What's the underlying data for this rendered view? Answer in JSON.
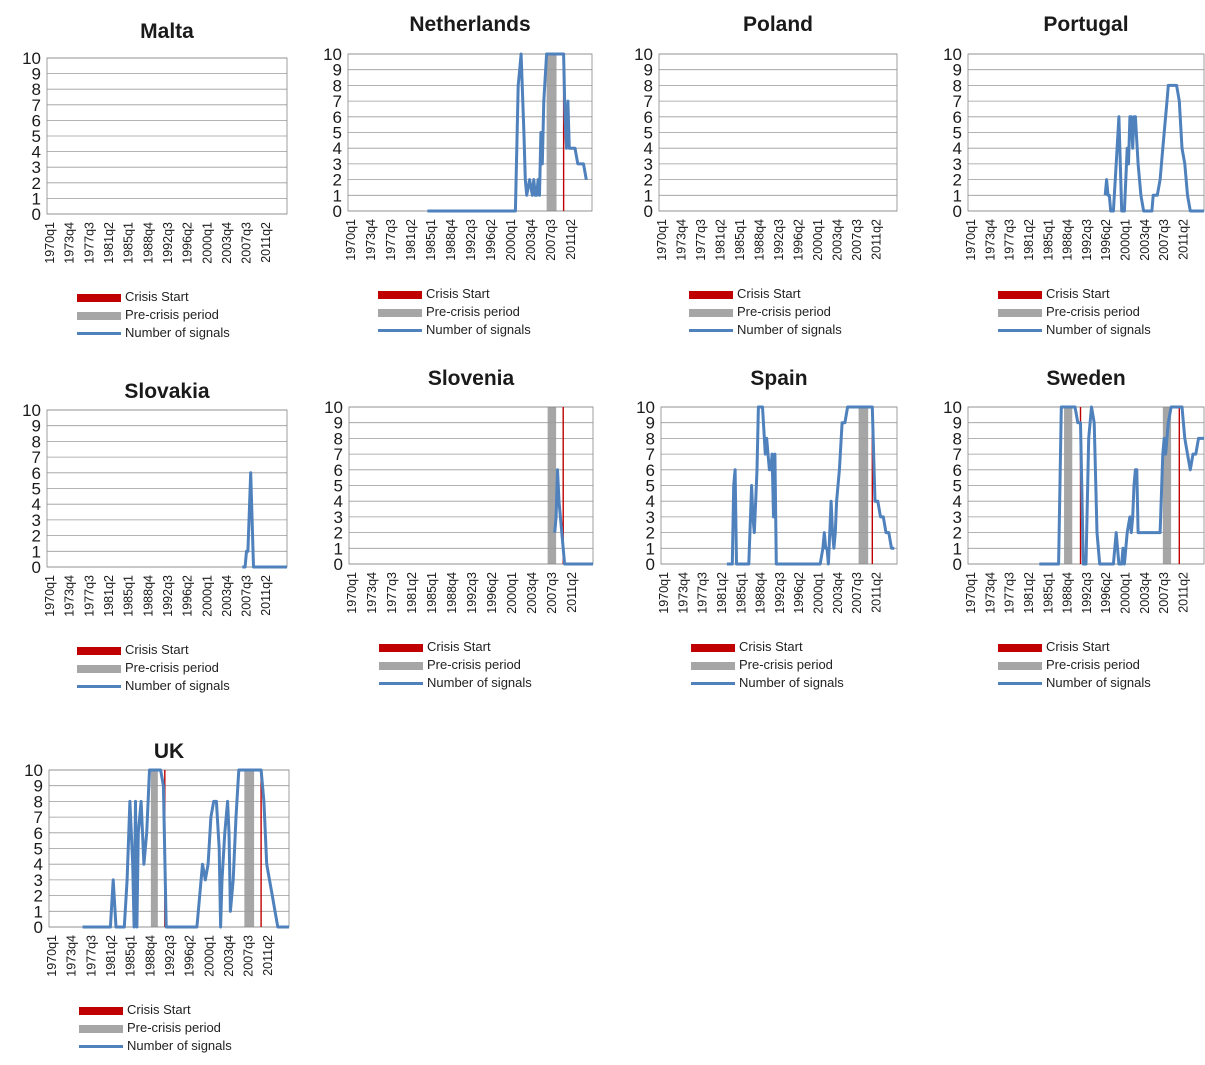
{
  "colors": {
    "crisis": "#c00000",
    "precrisis": "#a6a6a6",
    "signals": "#4f81bd",
    "grid": "#9a9a9a"
  },
  "chart_data": [
    {
      "type": "line",
      "title": "Malta",
      "ylim": [
        0,
        10
      ],
      "yticks": [
        0,
        1,
        2,
        3,
        4,
        5,
        6,
        7,
        8,
        9,
        10
      ],
      "xlim": [
        1970.0,
        2013.0
      ],
      "xtick_labels": [
        "1970q1",
        "1973q4",
        "1977q3",
        "1981q2",
        "1985q1",
        "1988q4",
        "1992q3",
        "1996q2",
        "2000q1",
        "2003q4",
        "2007q3",
        "2011q2"
      ],
      "legend": [
        "Crisis Start",
        "Pre-crisis period",
        "Number of signals"
      ],
      "grid": true,
      "crisis_start": [],
      "precrisis": [],
      "series": [
        {
          "x": [],
          "y": []
        }
      ]
    },
    {
      "type": "line",
      "title": "Netherlands",
      "ylim": [
        0,
        10
      ],
      "yticks": [
        0,
        1,
        2,
        3,
        4,
        5,
        6,
        7,
        8,
        9,
        10
      ],
      "xlim": [
        1970.0,
        2013.0
      ],
      "xtick_labels": [
        "1970q1",
        "1973q4",
        "1977q3",
        "1981q2",
        "1985q1",
        "1988q4",
        "1992q3",
        "1996q2",
        "2000q1",
        "2003q4",
        "2007q3",
        "2011q2"
      ],
      "legend": [
        "Crisis Start",
        "Pre-crisis period",
        "Number of signals"
      ],
      "grid": true,
      "crisis_start": [
        2008.0
      ],
      "precrisis": [
        [
          2005.0,
          2006.75
        ]
      ],
      "series": [
        {
          "x": [
            1984.0,
            1999.0,
            1999.5,
            2000.0,
            2000.25,
            2000.5,
            2001.0,
            2001.25,
            2001.5,
            2002.0,
            2002.5,
            2002.75,
            2003.0,
            2003.25,
            2003.5,
            2003.75,
            2004.0,
            2004.25,
            2004.5,
            2005.0,
            2005.5,
            2006.0,
            2006.5,
            2007.0,
            2007.25,
            2007.5,
            2008.0,
            2008.25,
            2008.5,
            2008.75,
            2009.0,
            2009.5,
            2009.75,
            2010.0,
            2010.5,
            2011.0,
            2011.5,
            2012.0
          ],
          "y": [
            0,
            0,
            0,
            8,
            9,
            10,
            5,
            2,
            1,
            2,
            1,
            2,
            1,
            1,
            2,
            1,
            5,
            3,
            7,
            10,
            10,
            10,
            10,
            10,
            10,
            10,
            10,
            6,
            4,
            7,
            4,
            4,
            4,
            4,
            3,
            3,
            3,
            2
          ]
        }
      ]
    },
    {
      "type": "line",
      "title": "Poland",
      "ylim": [
        0,
        10
      ],
      "yticks": [
        0,
        1,
        2,
        3,
        4,
        5,
        6,
        7,
        8,
        9,
        10
      ],
      "xlim": [
        1970.0,
        2013.0
      ],
      "xtick_labels": [
        "1970q1",
        "1973q4",
        "1977q3",
        "1981q2",
        "1985q1",
        "1988q4",
        "1992q3",
        "1996q2",
        "2000q1",
        "2003q4",
        "2007q3",
        "2011q2"
      ],
      "legend": [
        "Crisis Start",
        "Pre-crisis period",
        "Number of signals"
      ],
      "grid": true,
      "crisis_start": [],
      "precrisis": [],
      "series": [
        {
          "x": [],
          "y": []
        }
      ]
    },
    {
      "type": "line",
      "title": "Portugal",
      "ylim": [
        0,
        10
      ],
      "yticks": [
        0,
        1,
        2,
        3,
        4,
        5,
        6,
        7,
        8,
        9,
        10
      ],
      "xlim": [
        1970.0,
        2013.0
      ],
      "xtick_labels": [
        "1970q1",
        "1973q4",
        "1977q3",
        "1981q2",
        "1985q1",
        "1988q4",
        "1992q3",
        "1996q2",
        "2000q1",
        "2003q4",
        "2007q3",
        "2011q2"
      ],
      "legend": [
        "Crisis Start",
        "Pre-crisis period",
        "Number of signals"
      ],
      "grid": true,
      "crisis_start": [],
      "precrisis": [],
      "series": [
        {
          "x": [
            1995.0,
            1995.25,
            1995.5,
            1995.75,
            1996.0,
            1996.25,
            1996.5,
            1997.0,
            1997.5,
            1998.0,
            1998.5,
            1999.0,
            1999.25,
            1999.5,
            1999.75,
            2000.0,
            2000.25,
            2000.5,
            2001.0,
            2001.5,
            2002.0,
            2003.0,
            2003.5,
            2003.75,
            2004.0,
            2004.5,
            2005.0,
            2005.5,
            2006.0,
            2006.25,
            2006.5,
            2007.0,
            2007.5,
            2008.0,
            2008.5,
            2009.0,
            2009.5,
            2010.0,
            2010.5,
            2011.0,
            2012.0,
            2013.0
          ],
          "y": [
            1,
            2,
            1,
            1,
            0,
            0,
            0,
            3,
            6,
            0,
            0,
            4,
            3,
            6,
            6,
            4,
            6,
            6,
            3,
            1,
            0,
            0,
            0,
            1,
            1,
            1,
            2,
            4,
            6,
            7,
            8,
            8,
            8,
            8,
            7,
            4,
            3,
            1,
            0,
            0,
            0,
            0
          ]
        }
      ]
    },
    {
      "type": "line",
      "title": "Slovakia",
      "ylim": [
        0,
        10
      ],
      "yticks": [
        0,
        1,
        2,
        3,
        4,
        5,
        6,
        7,
        8,
        9,
        10
      ],
      "xlim": [
        1970.0,
        2013.0
      ],
      "xtick_labels": [
        "1970q1",
        "1973q4",
        "1977q3",
        "1981q2",
        "1985q1",
        "1988q4",
        "1992q3",
        "1996q2",
        "2000q1",
        "2003q4",
        "2007q3",
        "2011q2"
      ],
      "legend": [
        "Crisis Start",
        "Pre-crisis period",
        "Number of signals"
      ],
      "grid": true,
      "crisis_start": [],
      "precrisis": [],
      "series": [
        {
          "x": [
            2005.0,
            2005.5,
            2005.75,
            2006.0,
            2006.5,
            2007.0,
            2007.5,
            2008.0,
            2009.0,
            2010.0,
            2011.0,
            2012.0,
            2013.0
          ],
          "y": [
            0,
            0,
            1,
            1,
            6,
            0,
            0,
            0,
            0,
            0,
            0,
            0,
            0
          ]
        }
      ]
    },
    {
      "type": "line",
      "title": "Slovenia",
      "ylim": [
        0,
        10
      ],
      "yticks": [
        0,
        1,
        2,
        3,
        4,
        5,
        6,
        7,
        8,
        9,
        10
      ],
      "xlim": [
        1970.0,
        2013.0
      ],
      "xtick_labels": [
        "1970q1",
        "1973q4",
        "1977q3",
        "1981q2",
        "1985q1",
        "1988q4",
        "1992q3",
        "1996q2",
        "2000q1",
        "2003q4",
        "2007q3",
        "2011q2"
      ],
      "legend": [
        "Crisis Start",
        "Pre-crisis period",
        "Number of signals"
      ],
      "grid": true,
      "crisis_start": [
        2007.75
      ],
      "precrisis": [
        [
          2005.0,
          2006.5
        ]
      ],
      "series": [
        {
          "x": [
            2006.25,
            2006.5,
            2006.75,
            2007.0,
            2007.25,
            2007.5,
            2008.0,
            2008.5,
            2009.0,
            2010.0,
            2011.0,
            2012.0,
            2013.0
          ],
          "y": [
            2,
            3,
            6,
            4,
            3,
            2,
            0,
            0,
            0,
            0,
            0,
            0,
            0
          ]
        }
      ]
    },
    {
      "type": "line",
      "title": "Spain",
      "ylim": [
        0,
        10
      ],
      "yticks": [
        0,
        1,
        2,
        3,
        4,
        5,
        6,
        7,
        8,
        9,
        10
      ],
      "xlim": [
        1970.0,
        2013.0
      ],
      "xtick_labels": [
        "1970q1",
        "1973q4",
        "1977q3",
        "1981q2",
        "1985q1",
        "1988q4",
        "1992q3",
        "1996q2",
        "2000q1",
        "2003q4",
        "2007q3",
        "2011q2"
      ],
      "legend": [
        "Crisis Start",
        "Pre-crisis period",
        "Number of signals"
      ],
      "grid": true,
      "crisis_start": [
        2008.5
      ],
      "precrisis": [
        [
          2006.0,
          2007.75
        ]
      ],
      "series": [
        {
          "x": [
            1982.0,
            1983.0,
            1983.25,
            1983.5,
            1983.75,
            1984.0,
            1985.0,
            1986.0,
            1986.5,
            1986.75,
            1987.0,
            1987.25,
            1987.5,
            1987.75,
            1988.0,
            1988.5,
            1989.0,
            1989.25,
            1989.5,
            1989.75,
            1990.0,
            1990.25,
            1990.5,
            1990.75,
            1991.0,
            1991.25,
            1991.5,
            1992.0,
            1993.0,
            1994.0,
            1995.0,
            1996.0,
            1997.0,
            1998.0,
            1999.0,
            1999.5,
            1999.75,
            2000.0,
            2000.25,
            2000.5,
            2001.0,
            2001.25,
            2001.5,
            2001.75,
            2002.0,
            2002.5,
            2003.0,
            2003.5,
            2004.0,
            2004.5,
            2005.0,
            2006.0,
            2007.0,
            2008.0,
            2008.5,
            2009.0,
            2009.25,
            2009.5,
            2010.0,
            2010.5,
            2011.0,
            2011.5,
            2012.0,
            2012.5
          ],
          "y": [
            0,
            0,
            5,
            6,
            0,
            0,
            0,
            0,
            5,
            3,
            2,
            4,
            6,
            10,
            10,
            10,
            7,
            8,
            7,
            6,
            6,
            7,
            3,
            7,
            0,
            0,
            0,
            0,
            0,
            0,
            0,
            0,
            0,
            0,
            0,
            1,
            2,
            1,
            1,
            0,
            4,
            2,
            1,
            2,
            4,
            6,
            9,
            9,
            10,
            10,
            10,
            10,
            10,
            10,
            10,
            4,
            4,
            4,
            3,
            3,
            2,
            2,
            1,
            1
          ]
        }
      ]
    },
    {
      "type": "line",
      "title": "Sweden",
      "ylim": [
        0,
        10
      ],
      "yticks": [
        0,
        1,
        2,
        3,
        4,
        5,
        6,
        7,
        8,
        9,
        10
      ],
      "xlim": [
        1970.0,
        2013.0
      ],
      "xtick_labels": [
        "1970q1",
        "1973q4",
        "1977q3",
        "1981q2",
        "1985q1",
        "1988q4",
        "1992q3",
        "1996q2",
        "2000q1",
        "2003q4",
        "2007q3",
        "2011q2"
      ],
      "legend": [
        "Crisis Start",
        "Pre-crisis period",
        "Number of signals"
      ],
      "grid": true,
      "crisis_start": [
        1990.5,
        2008.5
      ],
      "precrisis": [
        [
          1987.5,
          1989.0
        ],
        [
          2005.5,
          2007.0
        ]
      ],
      "series": [
        {
          "x": [
            1983.0,
            1986.0,
            1986.5,
            1987.0,
            1988.0,
            1989.0,
            1989.5,
            1990.0,
            1990.5,
            1991.0,
            1991.5,
            1992.0,
            1992.5,
            1993.0,
            1993.5,
            1994.0,
            1995.0,
            1996.0,
            1996.5,
            1997.0,
            1997.5,
            1998.0,
            1998.25,
            1998.5,
            1999.0,
            1999.5,
            1999.75,
            2000.0,
            2000.25,
            2000.5,
            2000.75,
            2001.0,
            2002.0,
            2003.0,
            2004.0,
            2004.5,
            2005.0,
            2005.5,
            2005.75,
            2006.0,
            2006.5,
            2007.0,
            2007.5,
            2008.0,
            2009.0,
            2009.5,
            2010.0,
            2010.5,
            2011.0,
            2011.5,
            2012.0,
            2013.0
          ],
          "y": [
            0,
            0,
            0,
            10,
            10,
            10,
            10,
            9,
            9,
            0,
            0,
            8,
            10,
            9,
            2,
            0,
            0,
            0,
            0,
            2,
            0,
            0,
            1,
            0,
            2,
            3,
            2,
            3,
            5,
            6,
            6,
            2,
            2,
            2,
            2,
            2,
            2,
            7,
            8,
            7,
            9,
            10,
            10,
            10,
            10,
            8,
            7,
            6,
            7,
            7,
            8,
            8
          ]
        }
      ]
    },
    {
      "type": "line",
      "title": "UK",
      "ylim": [
        0,
        10
      ],
      "yticks": [
        0,
        1,
        2,
        3,
        4,
        5,
        6,
        7,
        8,
        9,
        10
      ],
      "xlim": [
        1970.0,
        2013.0
      ],
      "xtick_labels": [
        "1970q1",
        "1973q4",
        "1977q3",
        "1981q2",
        "1985q1",
        "1988q4",
        "1992q3",
        "1996q2",
        "2000q1",
        "2003q4",
        "2007q3",
        "2011q2"
      ],
      "legend": [
        "Crisis Start",
        "Pre-crisis period",
        "Number of signals"
      ],
      "grid": true,
      "crisis_start": [
        1990.75,
        2008.0
      ],
      "precrisis": [
        [
          1988.25,
          1989.5
        ],
        [
          2005.0,
          2006.75
        ]
      ],
      "series": [
        {
          "x": [
            1976.0,
            1981.0,
            1981.5,
            1982.0,
            1983.0,
            1983.5,
            1984.0,
            1984.5,
            1985.0,
            1985.25,
            1985.5,
            1985.75,
            1986.0,
            1986.5,
            1987.0,
            1987.5,
            1988.0,
            1988.5,
            1989.0,
            1989.5,
            1990.0,
            1990.5,
            1991.0,
            1991.5,
            1992.0,
            1993.0,
            1994.0,
            1995.0,
            1996.0,
            1996.5,
            1997.0,
            1997.25,
            1997.5,
            1998.0,
            1998.5,
            1999.0,
            1999.5,
            2000.0,
            2000.5,
            2000.75,
            2001.0,
            2001.5,
            2002.0,
            2002.25,
            2002.5,
            2003.0,
            2003.5,
            2004.0,
            2004.5,
            2005.0,
            2006.0,
            2007.0,
            2008.0,
            2008.5,
            2009.0,
            2009.5,
            2010.0,
            2010.5,
            2011.0,
            2012.0,
            2013.0
          ],
          "y": [
            0,
            0,
            3,
            0,
            0,
            0,
            3,
            8,
            4,
            0,
            8,
            0,
            6,
            8,
            4,
            6,
            10,
            10,
            10,
            10,
            10,
            9,
            0,
            0,
            0,
            0,
            0,
            0,
            0,
            0,
            2,
            3,
            4,
            3,
            4,
            7,
            8,
            8,
            5,
            0,
            3,
            6,
            8,
            6,
            1,
            3,
            7,
            10,
            10,
            10,
            10,
            10,
            10,
            8,
            4,
            3,
            2,
            1,
            0,
            0,
            0
          ]
        }
      ]
    }
  ]
}
